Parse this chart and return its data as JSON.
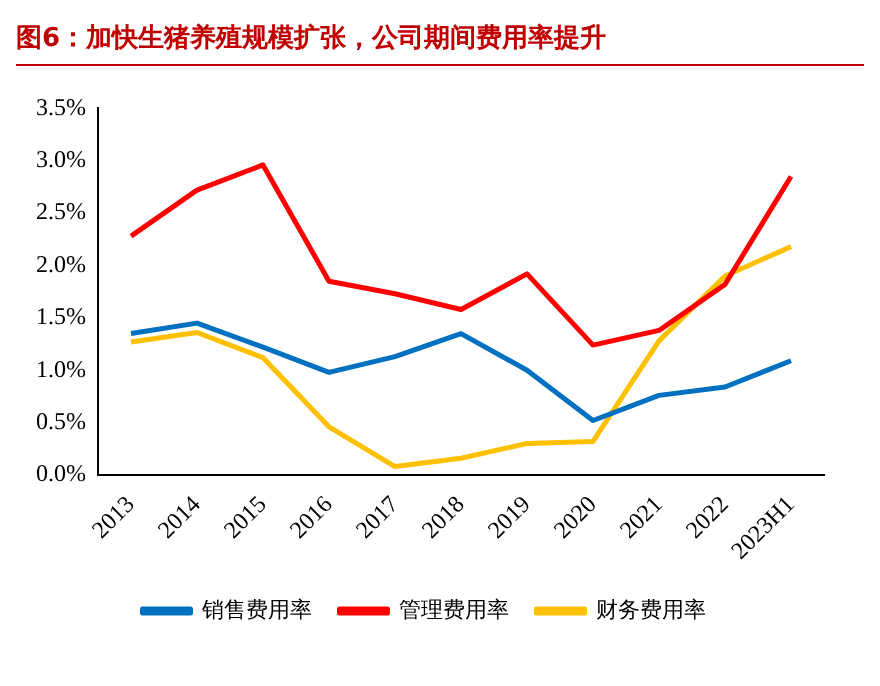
{
  "chart_data": {
    "type": "line",
    "title": "图6：加快生猪养殖规模扩张，公司期间费用率提升",
    "categories": [
      "2013",
      "2014",
      "2015",
      "2016",
      "2017",
      "2018",
      "2019",
      "2020",
      "2021",
      "2022",
      "2023H1"
    ],
    "series": [
      {
        "name": "销售费用率",
        "color": "#0070c0",
        "values": [
          1.35,
          1.45,
          1.22,
          0.98,
          1.13,
          1.35,
          1.0,
          0.52,
          0.76,
          0.84,
          1.09
        ]
      },
      {
        "name": "管理费用率",
        "color": "#ff0000",
        "values": [
          2.28,
          2.72,
          2.96,
          1.85,
          1.73,
          1.58,
          1.92,
          1.24,
          1.38,
          1.82,
          2.85
        ]
      },
      {
        "name": "财务费用率",
        "color": "#ffc000",
        "values": [
          1.27,
          1.36,
          1.12,
          0.46,
          0.08,
          0.16,
          0.3,
          0.32,
          1.28,
          1.9,
          2.18
        ]
      }
    ],
    "ylim": [
      0,
      3.5
    ],
    "yticks": [
      {
        "value": 0,
        "label": "0.0%"
      },
      {
        "value": 0.5,
        "label": "0.5%"
      },
      {
        "value": 1,
        "label": "1.0%"
      },
      {
        "value": 1.5,
        "label": "1.5%"
      },
      {
        "value": 2,
        "label": "2.0%"
      },
      {
        "value": 2.5,
        "label": "2.5%"
      },
      {
        "value": 3,
        "label": "3.0%"
      },
      {
        "value": 3.5,
        "label": "3.5%"
      }
    ],
    "grid": false,
    "legend": "bottom",
    "marker": "none",
    "line_style": "solid"
  }
}
